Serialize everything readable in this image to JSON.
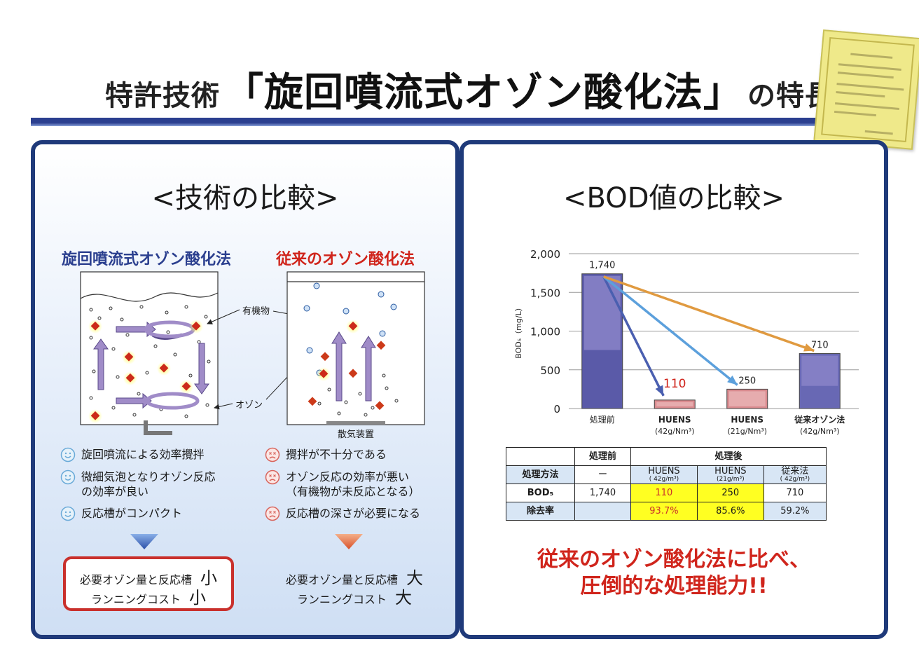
{
  "header": {
    "title_prefix": "特許技術",
    "title_main": "「旋回噴流式オゾン酸化法」",
    "title_suffix": "の特長"
  },
  "left_panel": {
    "heading": "<技術の比較>",
    "method_a": {
      "title": "旋回噴流式オゾン酸化法",
      "features": [
        "旋回噴流による効率攪拌",
        "微細気泡となりオゾン反応\nの効率が良い",
        "反応槽がコンパクト"
      ],
      "result_line1": "必要オゾン量と反応槽",
      "result_mark1": "小",
      "result_line2": "ランニングコスト",
      "result_mark2": "小"
    },
    "method_b": {
      "title": "従来のオゾン酸化法",
      "features": [
        "攪拌が不十分である",
        "オゾン反応の効率が悪い\n（有機物が未反応となる）",
        "反応槽の深さが必要になる"
      ],
      "result_line1": "必要オゾン量と反応槽",
      "result_mark1": "大",
      "result_line2": "ランニングコスト",
      "result_mark2": "大"
    },
    "labels": {
      "organic": "有機物",
      "ozone": "オゾン",
      "diffuser": "散気装置"
    }
  },
  "right_panel": {
    "heading": "<BOD値の比較>",
    "table": {
      "col_before": "処理前",
      "col_after": "処理後",
      "row_method": "処理方法",
      "row_bod": "BOD₅",
      "row_removal": "除去率",
      "method_before": "ー",
      "methods": [
        {
          "name": "HUENS",
          "sub": "( 42g/m³)"
        },
        {
          "name": "HUENS",
          "sub": "(21g/m³)"
        },
        {
          "name": "従来法",
          "sub": "( 42g/m³)"
        }
      ],
      "bod_before": "1,740",
      "bod_values": [
        "110",
        "250",
        "710"
      ],
      "removal_values": [
        "93.7%",
        "85.6%",
        "59.2%"
      ]
    },
    "conclusion_line1": "従来のオゾン酸化法に比べ、",
    "conclusion_line2": "圧倒的な処理能力!!"
  },
  "chart_data": {
    "type": "bar",
    "ylabel": "BOD₅（mg/L）",
    "ylim": [
      0,
      2000
    ],
    "yticks": [
      "0",
      "500",
      "1,000",
      "1,500",
      "2,000"
    ],
    "categories": [
      {
        "line1": "処理前",
        "line2": ""
      },
      {
        "line1": "HUENS",
        "line2": "(42g/Nm³)"
      },
      {
        "line1": "HUENS",
        "line2": "(21g/Nm³)"
      },
      {
        "line1": "従来オゾン法",
        "line2": "(42g/Nm³)"
      }
    ],
    "values": [
      1740,
      110,
      250,
      710
    ],
    "value_labels": [
      "1,740",
      "110",
      "250",
      "710"
    ],
    "colors": {
      "before": "#5a5aa8",
      "huens": "#d98a8e",
      "conventional": "#6868b4",
      "arrow1": "#4a5fb0",
      "arrow2": "#5ca0dc",
      "arrow3": "#e09a40",
      "highlight_label": "#d0251c"
    }
  }
}
